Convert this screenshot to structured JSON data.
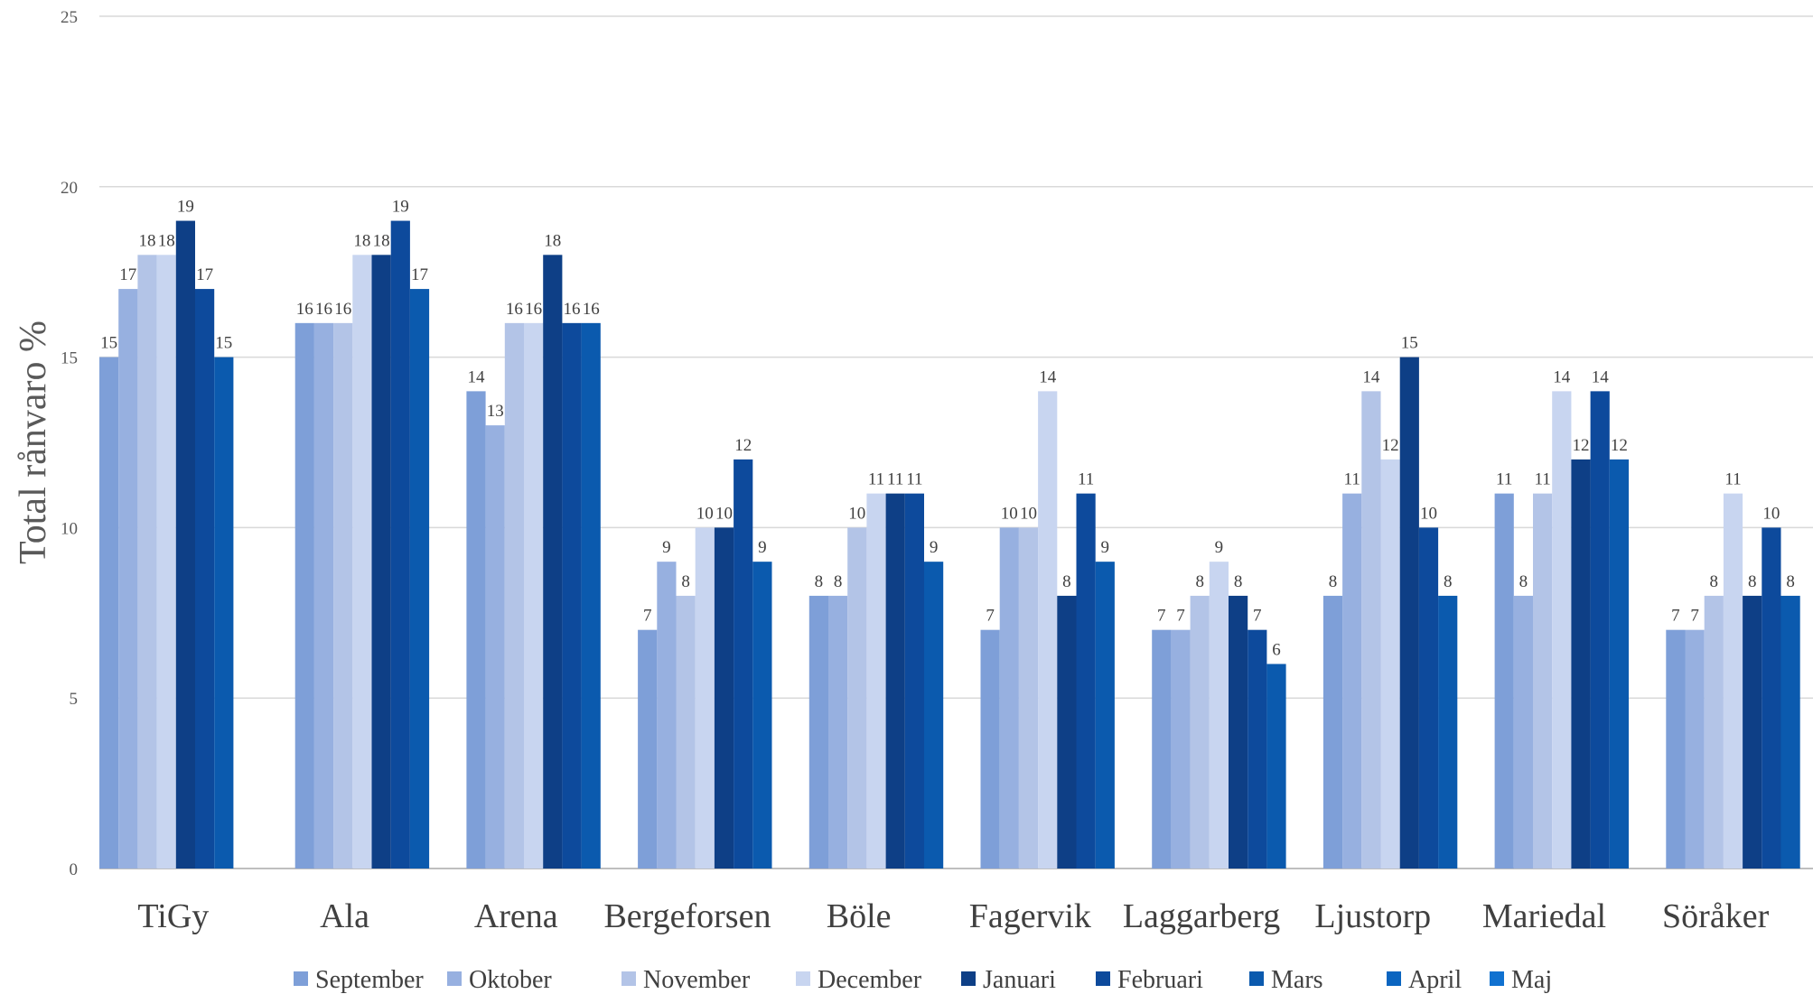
{
  "chart_data": {
    "type": "bar",
    "title": "",
    "xlabel": "",
    "ylabel": "Total rånvaro %",
    "ylim": [
      0,
      25
    ],
    "yticks": [
      0,
      5,
      10,
      15,
      20,
      25
    ],
    "grid": true,
    "legend_position": "bottom",
    "categories": [
      "TiGy",
      "Ala",
      "Arena",
      "Bergeforsen",
      "Böle",
      "Fagervik",
      "Laggarberg",
      "Ljustorp",
      "Mariedal",
      "Söråker"
    ],
    "series": [
      {
        "name": "September",
        "color": "#7e9fd8",
        "values": [
          15,
          16,
          14,
          7,
          8,
          7,
          7,
          8,
          11,
          7
        ]
      },
      {
        "name": "Oktober",
        "color": "#97b0e0",
        "values": [
          17,
          16,
          13,
          9,
          8,
          10,
          7,
          11,
          8,
          7
        ]
      },
      {
        "name": "November",
        "color": "#b3c4e7",
        "values": [
          18,
          16,
          16,
          8,
          10,
          10,
          8,
          14,
          11,
          8
        ]
      },
      {
        "name": "December",
        "color": "#c8d5f0",
        "values": [
          18,
          18,
          16,
          10,
          11,
          14,
          9,
          12,
          14,
          11
        ]
      },
      {
        "name": "Januari",
        "color": "#0e3f86",
        "values": [
          19,
          18,
          18,
          10,
          11,
          8,
          8,
          15,
          12,
          8
        ]
      },
      {
        "name": "Februari",
        "color": "#0d4a9c",
        "values": [
          17,
          19,
          16,
          12,
          11,
          11,
          7,
          10,
          14,
          10
        ]
      },
      {
        "name": "Mars",
        "color": "#0b5aae",
        "values": [
          15,
          17,
          16,
          9,
          9,
          9,
          6,
          8,
          12,
          8
        ]
      },
      {
        "name": "April",
        "color": "#0b65c0",
        "values": [
          null,
          null,
          null,
          null,
          null,
          null,
          null,
          null,
          null,
          null
        ]
      },
      {
        "name": "Maj",
        "color": "#1071d0",
        "values": [
          null,
          null,
          null,
          null,
          null,
          null,
          null,
          null,
          null,
          null
        ]
      }
    ]
  }
}
